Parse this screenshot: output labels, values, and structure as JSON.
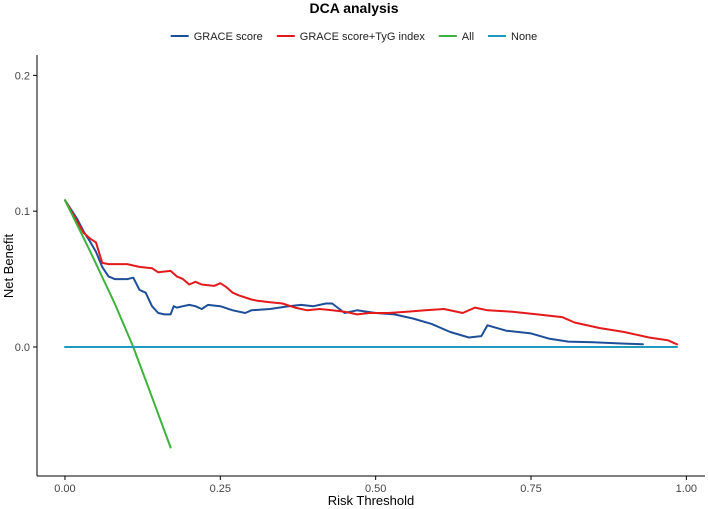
{
  "chart_data": {
    "type": "line",
    "title": "DCA analysis",
    "xlabel": "Risk Threshold",
    "ylabel": "Net Benefit",
    "xlim": [
      -0.045,
      1.03
    ],
    "ylim": [
      -0.095,
      0.215
    ],
    "x_ticks": [
      0.0,
      0.25,
      0.5,
      0.75,
      1.0
    ],
    "x_tick_labels": [
      "0.00",
      "0.25",
      "0.50",
      "0.75",
      "1.00"
    ],
    "y_ticks": [
      0.0,
      0.1,
      0.2
    ],
    "y_tick_labels": [
      "0.0",
      "0.1",
      "0.2"
    ],
    "grid": false,
    "legend_position": "top",
    "series": [
      {
        "name": "GRACE score",
        "color": "#1f4e99",
        "points": [
          [
            0.0,
            0.108
          ],
          [
            0.02,
            0.094
          ],
          [
            0.03,
            0.085
          ],
          [
            0.04,
            0.078
          ],
          [
            0.05,
            0.07
          ],
          [
            0.06,
            0.059
          ],
          [
            0.07,
            0.052
          ],
          [
            0.08,
            0.05
          ],
          [
            0.1,
            0.05
          ],
          [
            0.11,
            0.051
          ],
          [
            0.12,
            0.042
          ],
          [
            0.13,
            0.04
          ],
          [
            0.14,
            0.03
          ],
          [
            0.15,
            0.025
          ],
          [
            0.16,
            0.024
          ],
          [
            0.17,
            0.024
          ],
          [
            0.175,
            0.03
          ],
          [
            0.18,
            0.029
          ],
          [
            0.19,
            0.03
          ],
          [
            0.2,
            0.031
          ],
          [
            0.21,
            0.03
          ],
          [
            0.22,
            0.028
          ],
          [
            0.23,
            0.031
          ],
          [
            0.25,
            0.03
          ],
          [
            0.27,
            0.027
          ],
          [
            0.29,
            0.025
          ],
          [
            0.3,
            0.027
          ],
          [
            0.33,
            0.028
          ],
          [
            0.36,
            0.03
          ],
          [
            0.38,
            0.031
          ],
          [
            0.4,
            0.03
          ],
          [
            0.42,
            0.032
          ],
          [
            0.43,
            0.032
          ],
          [
            0.45,
            0.025
          ],
          [
            0.47,
            0.027
          ],
          [
            0.5,
            0.025
          ],
          [
            0.53,
            0.024
          ],
          [
            0.56,
            0.021
          ],
          [
            0.59,
            0.017
          ],
          [
            0.62,
            0.011
          ],
          [
            0.65,
            0.007
          ],
          [
            0.67,
            0.008
          ],
          [
            0.68,
            0.016
          ],
          [
            0.71,
            0.012
          ],
          [
            0.75,
            0.01
          ],
          [
            0.78,
            0.006
          ],
          [
            0.81,
            0.004
          ],
          [
            0.85,
            0.0035
          ],
          [
            0.9,
            0.0025
          ],
          [
            0.93,
            0.002
          ]
        ]
      },
      {
        "name": "GRACE score+TyG index",
        "color": "#e31a1c",
        "points": [
          [
            0.0,
            0.108
          ],
          [
            0.02,
            0.092
          ],
          [
            0.03,
            0.084
          ],
          [
            0.04,
            0.08
          ],
          [
            0.05,
            0.077
          ],
          [
            0.06,
            0.062
          ],
          [
            0.07,
            0.061
          ],
          [
            0.1,
            0.061
          ],
          [
            0.12,
            0.059
          ],
          [
            0.14,
            0.058
          ],
          [
            0.15,
            0.055
          ],
          [
            0.17,
            0.056
          ],
          [
            0.18,
            0.052
          ],
          [
            0.19,
            0.05
          ],
          [
            0.2,
            0.046
          ],
          [
            0.21,
            0.048
          ],
          [
            0.22,
            0.046
          ],
          [
            0.24,
            0.045
          ],
          [
            0.25,
            0.047
          ],
          [
            0.26,
            0.044
          ],
          [
            0.27,
            0.04
          ],
          [
            0.28,
            0.038
          ],
          [
            0.3,
            0.035
          ],
          [
            0.31,
            0.034
          ],
          [
            0.33,
            0.033
          ],
          [
            0.35,
            0.032
          ],
          [
            0.37,
            0.029
          ],
          [
            0.39,
            0.027
          ],
          [
            0.41,
            0.028
          ],
          [
            0.43,
            0.027
          ],
          [
            0.45,
            0.026
          ],
          [
            0.47,
            0.024
          ],
          [
            0.49,
            0.025
          ],
          [
            0.52,
            0.025
          ],
          [
            0.55,
            0.026
          ],
          [
            0.58,
            0.027
          ],
          [
            0.61,
            0.028
          ],
          [
            0.64,
            0.025
          ],
          [
            0.66,
            0.029
          ],
          [
            0.68,
            0.027
          ],
          [
            0.72,
            0.026
          ],
          [
            0.76,
            0.024
          ],
          [
            0.8,
            0.022
          ],
          [
            0.82,
            0.018
          ],
          [
            0.86,
            0.014
          ],
          [
            0.9,
            0.011
          ],
          [
            0.94,
            0.007
          ],
          [
            0.97,
            0.005
          ],
          [
            0.985,
            0.002
          ]
        ]
      },
      {
        "name": "All",
        "color": "#3db33d",
        "points": [
          [
            0.0,
            0.108
          ],
          [
            0.04,
            0.071
          ],
          [
            0.08,
            0.032
          ],
          [
            0.11,
            0.0
          ],
          [
            0.14,
            -0.037
          ],
          [
            0.17,
            -0.074
          ]
        ]
      },
      {
        "name": "None",
        "color": "#1f9bbd",
        "points": [
          [
            0.0,
            0.0
          ],
          [
            0.985,
            0.0
          ]
        ]
      }
    ]
  }
}
